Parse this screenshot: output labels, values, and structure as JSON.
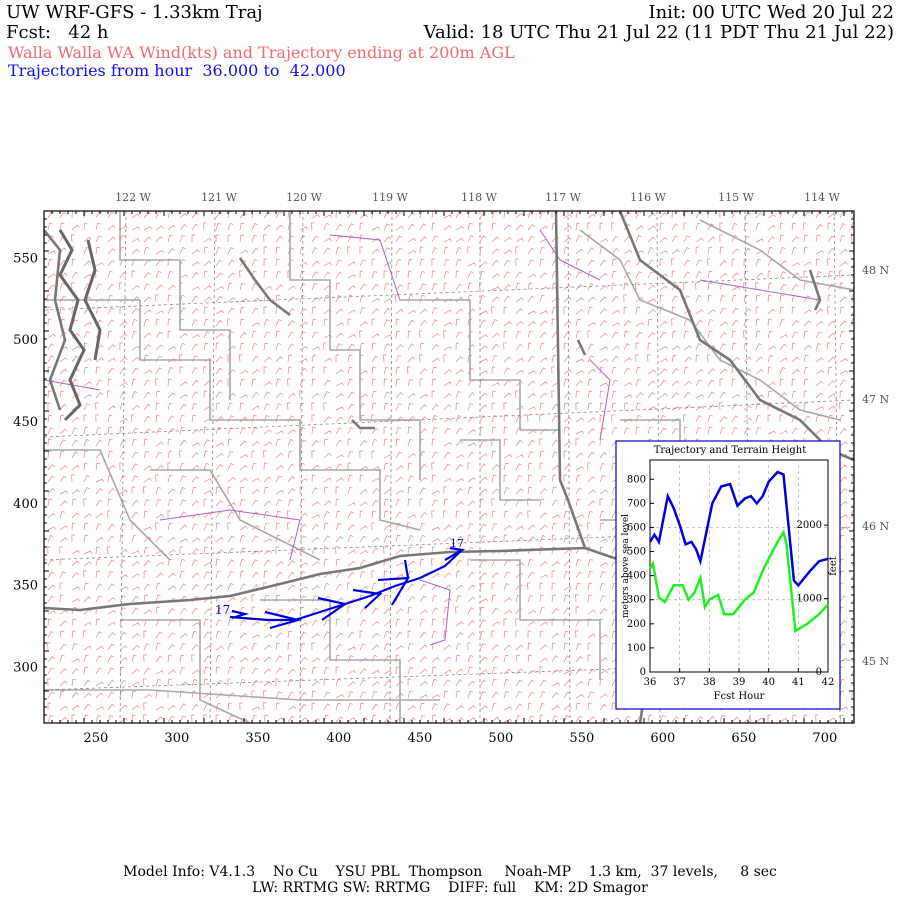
{
  "header": {
    "title_left": "UW WRF-GFS - 1.33km Traj",
    "init": "Init: 00 UTC Wed 20 Jul 22",
    "fcst": "Fcst:   42 h",
    "valid": "Valid: 18 UTC Thu 21 Jul 22 (11 PDT Thu 21 Jul 22)",
    "subtitle_red": "Walla Walla WA Wind(kts) and Trajectory ending at 200m AGL",
    "subtitle_blue": "Trajectories from hour  36.000 to  42.000"
  },
  "map": {
    "lon_labels": [
      "122 W",
      "121 W",
      "120 W",
      "119 W",
      "118 W",
      "117 W",
      "116 W",
      "115 W",
      "114 W"
    ],
    "lat_labels": [
      "48 N",
      "47 N",
      "46 N",
      "45 N"
    ],
    "x_ticks": [
      "250",
      "300",
      "350",
      "400",
      "450",
      "500",
      "550",
      "600",
      "650",
      "700"
    ],
    "y_ticks": [
      "550",
      "500",
      "450",
      "400",
      "350",
      "300"
    ],
    "trajectory_start_label": "17",
    "trajectory_end_label": "17"
  },
  "inset": {
    "title": "Trajectory and Terrain Height",
    "ylabel_left": "meters above sea level",
    "ylabel_right": "feet",
    "xlabel": "Fcst Hour",
    "x_ticks": [
      "36",
      "37",
      "38",
      "39",
      "40",
      "41",
      "42"
    ],
    "y_ticks": [
      "0",
      "100",
      "200",
      "300",
      "400",
      "500",
      "600",
      "700",
      "800"
    ],
    "y2_ticks": [
      "0",
      "1000",
      "2000"
    ],
    "colors": {
      "trajectory": "#0000dd",
      "terrain": "#22ee22"
    }
  },
  "chart_data": {
    "type": "line",
    "title": "Trajectory and Terrain Height",
    "xlabel": "Fcst Hour",
    "ylabel": "meters above sea level",
    "xlim": [
      36,
      42
    ],
    "ylim": [
      0,
      880
    ],
    "series": [
      {
        "values": [
          [
            36.0,
            540
          ],
          [
            36.15,
            570
          ],
          [
            36.3,
            540
          ],
          [
            36.6,
            730
          ],
          [
            36.8,
            680
          ],
          [
            37.0,
            610
          ],
          [
            37.2,
            530
          ],
          [
            37.4,
            540
          ],
          [
            37.55,
            510
          ],
          [
            37.7,
            460
          ],
          [
            38.1,
            700
          ],
          [
            38.4,
            770
          ],
          [
            38.7,
            780
          ],
          [
            38.95,
            690
          ],
          [
            39.2,
            720
          ],
          [
            39.4,
            730
          ],
          [
            39.6,
            700
          ],
          [
            39.8,
            730
          ],
          [
            40.0,
            790
          ],
          [
            40.3,
            830
          ],
          [
            40.5,
            820
          ],
          [
            40.85,
            380
          ],
          [
            41.0,
            360
          ],
          [
            41.4,
            420
          ],
          [
            41.7,
            460
          ],
          [
            42.0,
            470
          ]
        ]
      },
      {
        "values": [
          [
            36.0,
            430
          ],
          [
            36.1,
            450
          ],
          [
            36.3,
            310
          ],
          [
            36.5,
            290
          ],
          [
            36.8,
            360
          ],
          [
            37.1,
            360
          ],
          [
            37.3,
            300
          ],
          [
            37.5,
            330
          ],
          [
            37.7,
            390
          ],
          [
            37.85,
            270
          ],
          [
            38.0,
            300
          ],
          [
            38.3,
            320
          ],
          [
            38.5,
            240
          ],
          [
            38.8,
            240
          ],
          [
            39.2,
            300
          ],
          [
            39.5,
            330
          ],
          [
            39.8,
            420
          ],
          [
            40.0,
            470
          ],
          [
            40.3,
            540
          ],
          [
            40.5,
            580
          ],
          [
            40.6,
            530
          ],
          [
            40.9,
            170
          ],
          [
            41.3,
            200
          ],
          [
            41.7,
            240
          ],
          [
            42.0,
            280
          ]
        ]
      }
    ]
  },
  "footer": {
    "line1": "Model Info: V4.1.3    No Cu    YSU PBL  Thompson     Noah-MP    1.3 km,  37 levels,     8 sec",
    "line2": "LW: RRTMG SW: RRTMG    DIFF: full    KM: 2D Smagor"
  }
}
